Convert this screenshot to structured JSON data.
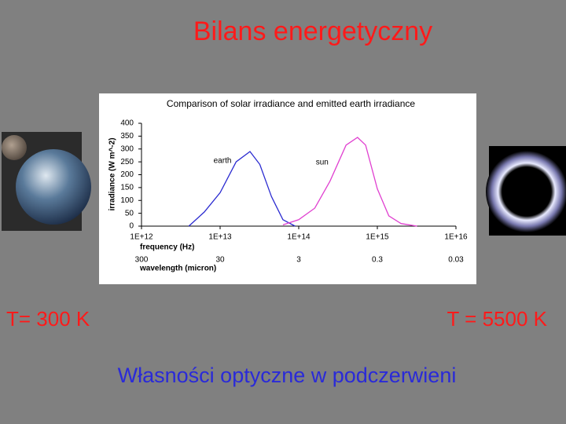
{
  "slide": {
    "title": "Bilans energetyczny",
    "left_caption": "T= 300 K",
    "right_caption": "T = 5500 K",
    "footer": "Własności optyczne w podczerwieni"
  },
  "chart_data": {
    "type": "line",
    "title": "Comparison of solar irradiance and emitted earth irradiance",
    "y_label": "irradiance (W m^-2)",
    "x_label": "frequency (Hz)",
    "x2_label": "wavelength (micron)",
    "x_log": true,
    "xlim": [
      1000000000000.0,
      1e+16
    ],
    "xticks": [
      {
        "value": 1000000000000.0,
        "label": "1E+12"
      },
      {
        "value": 10000000000000.0,
        "label": "1E+13"
      },
      {
        "value": 100000000000000.0,
        "label": "1E+14"
      },
      {
        "value": 1000000000000000.0,
        "label": "1E+15"
      },
      {
        "value": 1e+16,
        "label": "1E+16"
      }
    ],
    "x2lim": [
      300,
      0.03
    ],
    "x2ticks": [
      300,
      30,
      3,
      0.3,
      0.03
    ],
    "ylim": [
      0,
      400
    ],
    "yticks": [
      0,
      50,
      100,
      150,
      200,
      250,
      300,
      350,
      400
    ],
    "grid": false,
    "series": [
      {
        "name": "earth",
        "color": "#2a2ad0",
        "x": [
          4000000000000.0,
          6300000000000.0,
          10000000000000.0,
          16000000000000.0,
          24000000000000.0,
          32000000000000.0,
          45000000000000.0,
          63000000000000.0,
          90000000000000.0
        ],
        "values": [
          0,
          55,
          130,
          250,
          290,
          240,
          115,
          25,
          0
        ]
      },
      {
        "name": "sun",
        "color": "#e040d0",
        "x": [
          63000000000000.0,
          100000000000000.0,
          160000000000000.0,
          250000000000000.0,
          400000000000000.0,
          560000000000000.0,
          710000000000000.0,
          1000000000000000.0,
          1400000000000000.0,
          2000000000000000.0,
          3200000000000000.0
        ],
        "values": [
          5,
          25,
          70,
          175,
          315,
          345,
          315,
          145,
          40,
          10,
          0
        ]
      }
    ]
  }
}
